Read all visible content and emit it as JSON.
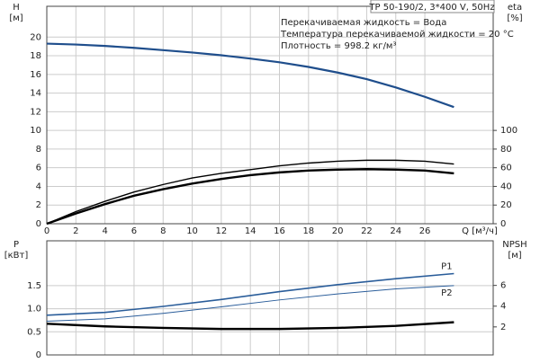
{
  "chart_data": [
    {
      "type": "line",
      "title": "TP 50-190/2, 3*400 V, 50Hz",
      "annotations": [
        "Перекачиваемая жидкость = Вода",
        "Температура перекачиваемой жидкости = 20 °C",
        "Плотность = 998.2 кг/м³"
      ],
      "ylabel": [
        "H",
        "[м]"
      ],
      "y2label": [
        "eta",
        "[%]"
      ],
      "xlabel": "Q [м³/ч]",
      "x": [
        0,
        2,
        4,
        6,
        8,
        10,
        12,
        14,
        16,
        18,
        20,
        22,
        24,
        26,
        28
      ],
      "xlim": [
        0,
        30.7
      ],
      "xticks": [
        0,
        2,
        4,
        6,
        8,
        10,
        12,
        14,
        16,
        18,
        20,
        22,
        24,
        26
      ],
      "ylim": [
        0,
        23.3
      ],
      "yticks": [
        0,
        2,
        4,
        6,
        8,
        10,
        12,
        14,
        16,
        18,
        20
      ],
      "y2lim": [
        0,
        233
      ],
      "y2ticks": [
        0,
        20,
        40,
        60,
        80,
        100
      ],
      "grid": true,
      "series": [
        {
          "color": "#1f4e8c",
          "width": 2.2,
          "values": [
            19.3,
            19.2,
            19.05,
            18.85,
            18.6,
            18.35,
            18.05,
            17.7,
            17.3,
            16.8,
            16.2,
            15.5,
            14.6,
            13.6,
            12.5
          ]
        },
        {
          "color": "#000000",
          "width": 1.4,
          "axis": "y2",
          "values": [
            0,
            13,
            24,
            34,
            42,
            49,
            54,
            58,
            62,
            65,
            67,
            68,
            68,
            67,
            64
          ]
        },
        {
          "color": "#000000",
          "width": 2.4,
          "axis": "y2",
          "values": [
            0,
            11,
            21,
            30,
            37,
            43,
            48,
            52,
            55,
            57,
            58,
            58.5,
            58,
            57,
            54
          ]
        }
      ]
    },
    {
      "type": "line",
      "ylabel": [
        "P",
        "[кВт]"
      ],
      "y2label": [
        "NPSH",
        "[м]"
      ],
      "x": [
        0,
        4,
        8,
        12,
        16,
        20,
        24,
        28
      ],
      "xlim": [
        0,
        30.7
      ],
      "ylim": [
        0,
        2.47
      ],
      "yticks": [
        0,
        0.5,
        {
          "value": 1,
          "label": "1.0"
        },
        1.5
      ],
      "y2lim": [
        -0.7,
        10.3
      ],
      "y2ticks": [
        2,
        4,
        6
      ],
      "grid": true,
      "series": [
        {
          "name": "P1",
          "color": "#2a5d9a",
          "width": 1.6,
          "values": [
            0.86,
            0.92,
            1.05,
            1.2,
            1.37,
            1.52,
            1.65,
            1.76
          ]
        },
        {
          "name": "P2",
          "color": "#2a5d9a",
          "width": 1,
          "values": [
            0.73,
            0.78,
            0.9,
            1.04,
            1.19,
            1.32,
            1.43,
            1.5
          ]
        },
        {
          "color": "#000000",
          "width": 2.4,
          "axis": "y2",
          "values": [
            2.3,
            2.05,
            1.9,
            1.8,
            1.8,
            1.9,
            2.1,
            2.45
          ]
        }
      ]
    }
  ]
}
